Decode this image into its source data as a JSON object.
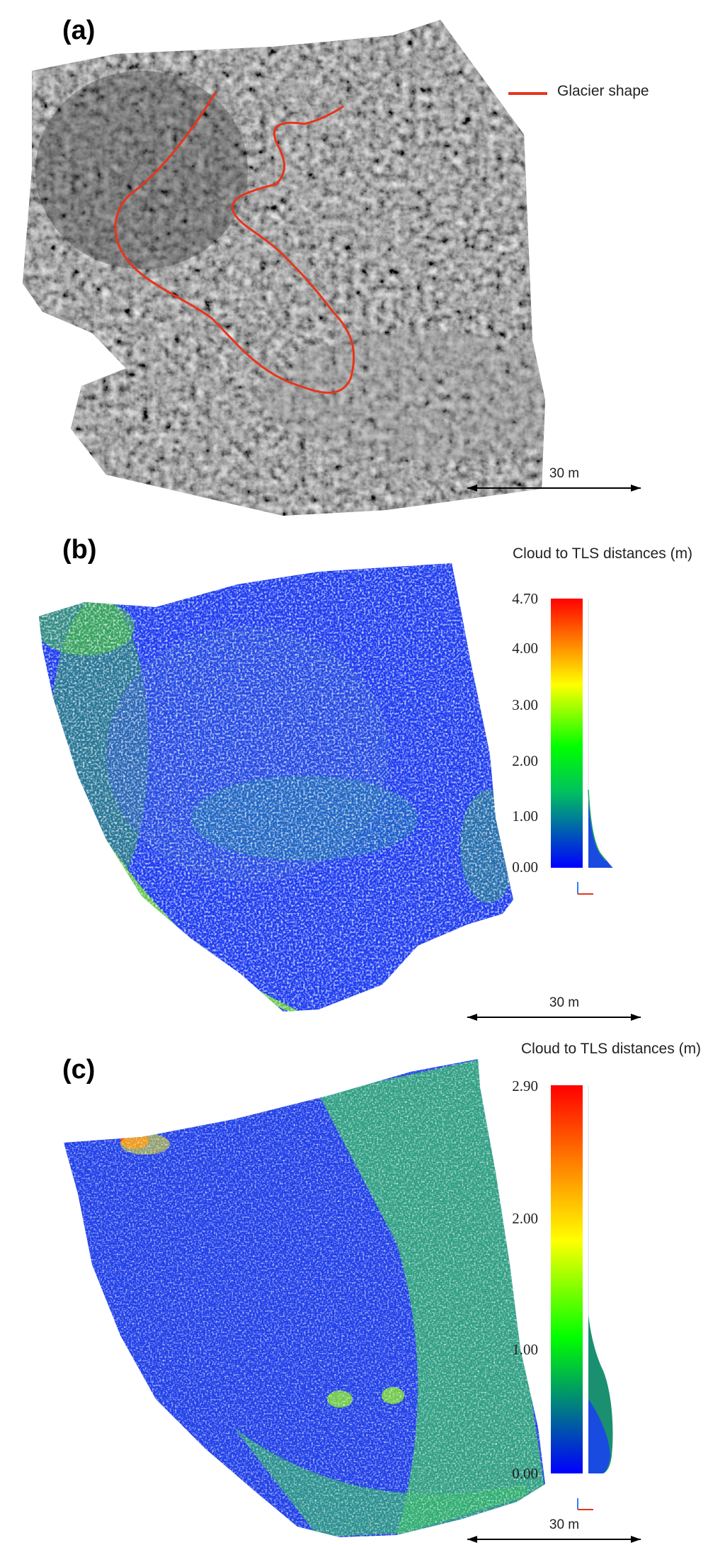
{
  "panels": {
    "a": {
      "label": "(a)",
      "legend": "Glacier shape",
      "legend_color": "#e8341c",
      "scale_label": "30 m"
    },
    "b": {
      "label": "(b)",
      "colorbar_title": "Cloud to TLS distances (m)",
      "ticks": [
        "4.70",
        "4.00",
        "3.00",
        "2.00",
        "1.00",
        "0.00"
      ],
      "range_max": 4.7,
      "scale_label": "30 m"
    },
    "c": {
      "label": "(c)",
      "colorbar_title": "Cloud to TLS distances (m)",
      "ticks": [
        "2.90",
        "2.00",
        "1.00",
        "0.00"
      ],
      "range_max": 2.9,
      "scale_label": "30 m"
    }
  },
  "colormap": [
    "#0000ff",
    "#00ff00",
    "#ffff00",
    "#ff0000"
  ]
}
